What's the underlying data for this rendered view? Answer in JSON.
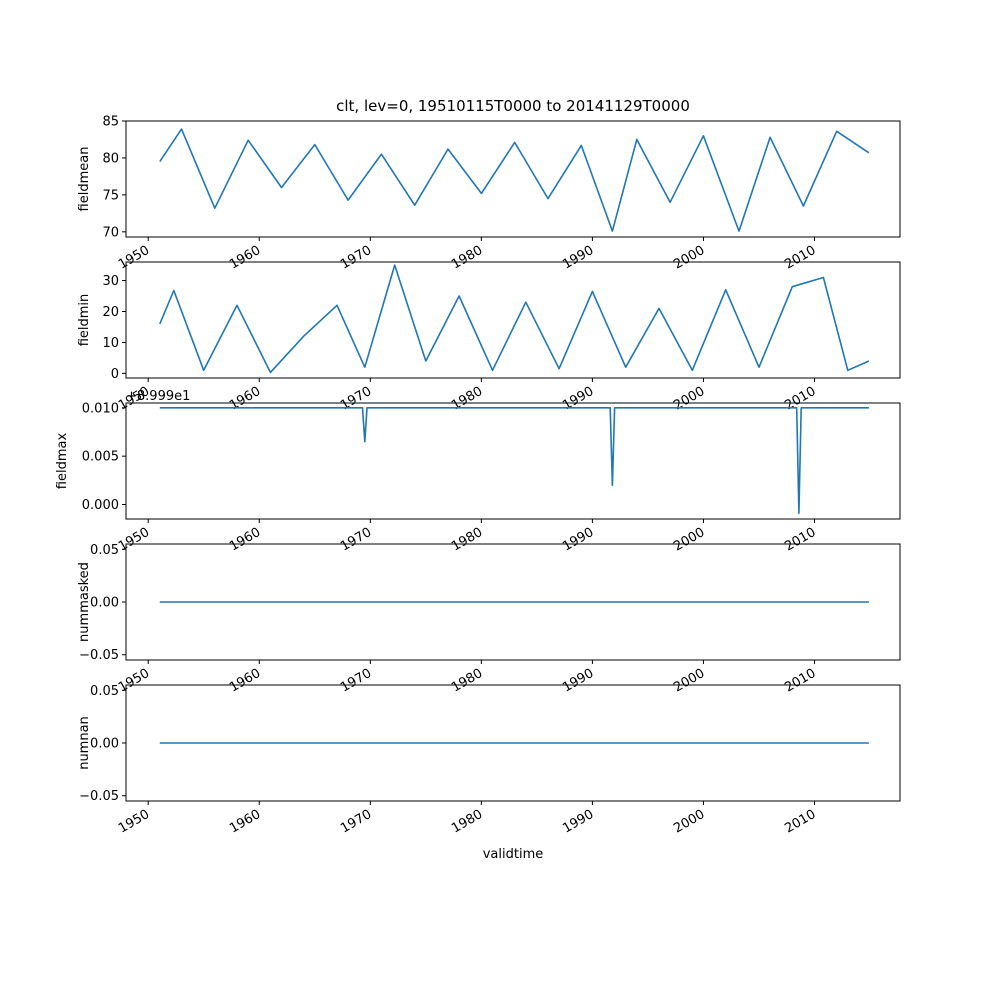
{
  "title": "clt, lev=0, 19510115T0000 to 20141129T0000",
  "xlabel": "validtime",
  "line_color": "#1f77b4",
  "chart_data": [
    {
      "type": "line",
      "ylabel": "fieldmean",
      "xlim": [
        1948.0,
        2017.7
      ],
      "ylim": [
        69.3,
        85.0
      ],
      "xticks": [
        "1950",
        "1960",
        "1970",
        "1980",
        "1990",
        "2000",
        "2010"
      ],
      "yticks": [
        70,
        75,
        80,
        85
      ],
      "offset_text": "",
      "series": [
        {
          "x": [
            1951.04,
            1953,
            1956,
            1959,
            1962,
            1965,
            1968,
            1971,
            1974,
            1977,
            1980,
            1983,
            1986,
            1989,
            1991.8,
            1994,
            1997,
            2000,
            2003.2,
            2006,
            2009,
            2012,
            2014.9
          ],
          "y": [
            79.5,
            83.9,
            73.2,
            82.4,
            76.0,
            81.8,
            74.3,
            80.5,
            73.6,
            81.2,
            75.2,
            82.1,
            74.5,
            81.7,
            70.1,
            82.5,
            74.0,
            83.0,
            70.1,
            82.8,
            73.5,
            83.6,
            80.7
          ]
        }
      ]
    },
    {
      "type": "line",
      "ylabel": "fieldmin",
      "xlim": [
        1948.0,
        2017.7
      ],
      "ylim": [
        -1.5,
        36.0
      ],
      "xticks": [
        "1950",
        "1960",
        "1970",
        "1980",
        "1990",
        "2000",
        "2010"
      ],
      "yticks": [
        0,
        10,
        20,
        30
      ],
      "offset_text": "",
      "series": [
        {
          "x": [
            1951.04,
            1952.3,
            1955,
            1958,
            1961,
            1964,
            1967,
            1969.5,
            1972.2,
            1975,
            1978,
            1981,
            1984,
            1987,
            1990,
            1993,
            1996,
            1999,
            2002,
            2005,
            2008,
            2010.8,
            2013,
            2014.9
          ],
          "y": [
            16.0,
            26.8,
            1.0,
            22.0,
            0.3,
            12.0,
            22.0,
            2.0,
            35.0,
            4.0,
            25.0,
            1.0,
            23.0,
            1.5,
            26.5,
            2.0,
            21.0,
            1.0,
            27.0,
            2.0,
            28.0,
            31.0,
            1.0,
            4.0
          ]
        }
      ]
    },
    {
      "type": "line",
      "ylabel": "fieldmax",
      "xlim": [
        1948.0,
        2017.7
      ],
      "ylim": [
        -0.0015,
        0.0105
      ],
      "xticks": [
        "1950",
        "1960",
        "1970",
        "1980",
        "1990",
        "2000",
        "2010"
      ],
      "yticks": [
        "0.000",
        "0.005",
        "0.010"
      ],
      "offset_text": "+8.999e1",
      "series": [
        {
          "x": [
            1951.04,
            1969.3,
            1969.5,
            1969.7,
            1991.6,
            1991.8,
            1992.0,
            2008.4,
            2008.6,
            2008.8,
            2014.9
          ],
          "y": [
            0.01,
            0.01,
            0.0065,
            0.01,
            0.01,
            0.002,
            0.01,
            0.01,
            -0.0009,
            0.01,
            0.01
          ]
        }
      ]
    },
    {
      "type": "line",
      "ylabel": "nummasked",
      "xlim": [
        1948.0,
        2017.7
      ],
      "ylim": [
        -0.055,
        0.055
      ],
      "xticks": [
        "1950",
        "1960",
        "1970",
        "1980",
        "1990",
        "2000",
        "2010"
      ],
      "yticks": [
        "−0.05",
        "0.00",
        "0.05"
      ],
      "offset_text": "",
      "series": [
        {
          "x": [
            1951.04,
            2014.9
          ],
          "y": [
            0,
            0
          ]
        }
      ]
    },
    {
      "type": "line",
      "ylabel": "numnan",
      "xlim": [
        1948.0,
        2017.7
      ],
      "ylim": [
        -0.055,
        0.055
      ],
      "xticks": [
        "1950",
        "1960",
        "1970",
        "1980",
        "1990",
        "2000",
        "2010"
      ],
      "yticks": [
        "−0.05",
        "0.00",
        "0.05"
      ],
      "offset_text": "",
      "series": [
        {
          "x": [
            1951.04,
            2014.9
          ],
          "y": [
            0,
            0
          ]
        }
      ]
    }
  ]
}
